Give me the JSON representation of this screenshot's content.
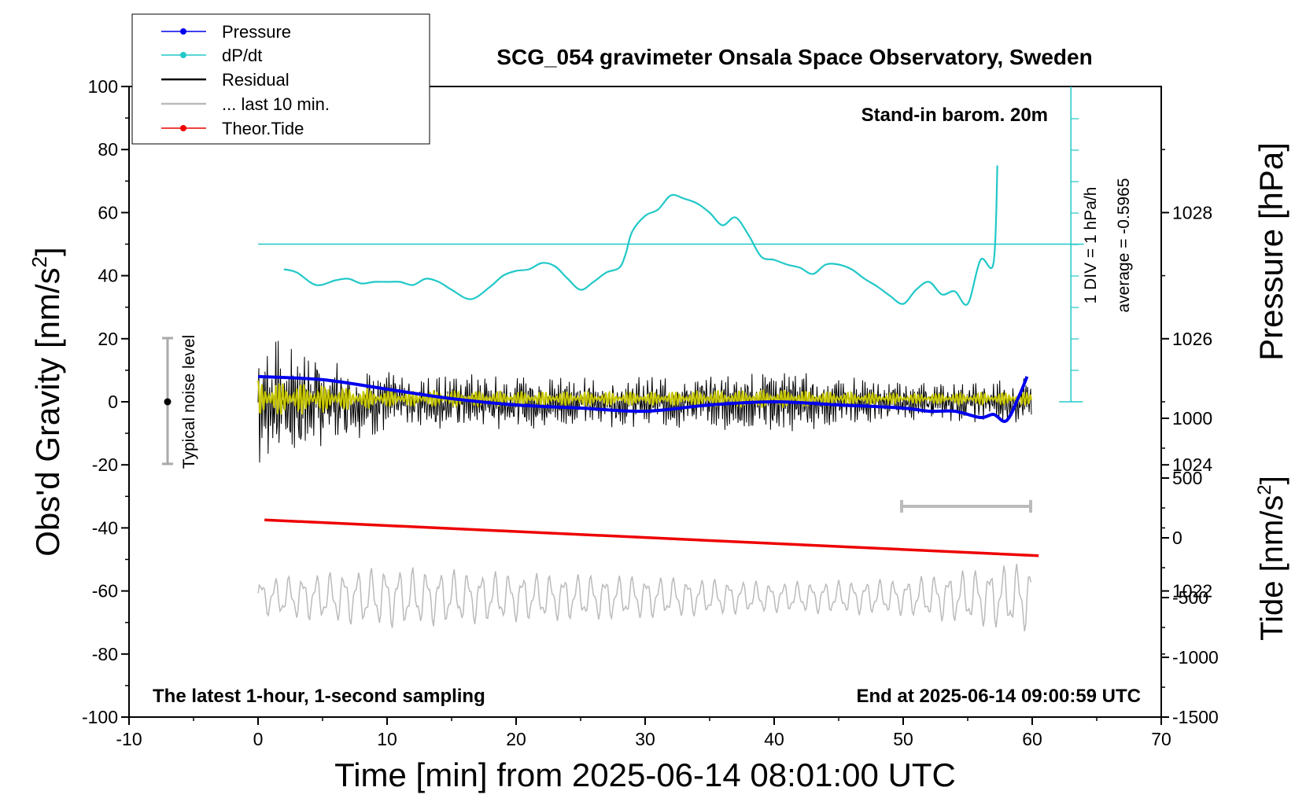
{
  "chart_data": {
    "type": "line",
    "title": "SCG_054 gravimeter Onsala Space Observatory, Sweden",
    "xlabel": "Time [min] from 2025-06-14 08:01:00 UTC",
    "ylabel": "Obs'd Gravity [nm/s",
    "ylabel_sup": "2",
    "ylabel_end": "]",
    "y2label": "Pressure [hPa]",
    "y3label": "Tide [nm/s",
    "y3label_sup": "2",
    "y3label_end": "]",
    "xlim": [
      -10,
      70
    ],
    "ylim": [
      -100,
      100
    ],
    "pressure_lim": [
      1020,
      1030
    ],
    "tide_lim": [
      -1500,
      1500
    ],
    "x_ticks": [
      "-10",
      "0",
      "10",
      "20",
      "30",
      "40",
      "50",
      "60",
      "70"
    ],
    "y_ticks": [
      "-100",
      "-80",
      "-60",
      "-40",
      "-20",
      "0",
      "20",
      "40",
      "60",
      "80",
      "100"
    ],
    "pressure_ticks": [
      "1022",
      "1024",
      "1026",
      "1028"
    ],
    "tide_ticks": [
      "1000",
      "500",
      "0",
      "-500",
      "-1000",
      "-1500"
    ],
    "annotations": {
      "barometer": "Stand-in barom. 20m",
      "noise": "Typical noise level",
      "dpdt_scale": "1 DIV = 1 hPa/h",
      "dpdt_average": "average = -0.5965",
      "latest": "The latest 1-hour, 1-second sampling",
      "end": "End at 2025-06-14 09:00:59 UTC"
    },
    "legend": {
      "placement": "top-left",
      "entries": [
        "Pressure",
        "dP/dt",
        "Residual",
        "... last 10 min.",
        "Theor.Tide"
      ]
    },
    "colors": {
      "pressure": "#0000ee",
      "dpdt": "#22c8c8",
      "residual": "#000000",
      "residual_smooth": "#c8c800",
      "last10": "#bbbbbb",
      "tide": "#ee0000"
    },
    "series": [
      {
        "name": "Pressure",
        "axis": "pressure",
        "x": [
          0,
          5,
          10,
          15,
          20,
          25,
          30,
          35,
          40,
          45,
          50,
          52,
          54,
          56,
          57,
          58,
          59,
          59.6
        ],
        "values": [
          1025.4,
          1025.35,
          1025.2,
          1025.05,
          1024.95,
          1024.9,
          1024.85,
          1024.95,
          1025.0,
          1024.95,
          1024.9,
          1024.85,
          1024.85,
          1024.75,
          1024.8,
          1024.7,
          1025.1,
          1025.4
        ]
      },
      {
        "name": "dP/dt",
        "axis": "dpdt_div",
        "x": [
          2,
          3,
          4.5,
          6,
          7,
          8,
          9,
          10,
          11,
          12,
          13,
          14,
          15,
          16.5,
          18,
          19,
          20,
          21,
          22,
          23,
          24,
          25,
          26,
          27,
          28,
          28.5,
          29,
          30,
          31,
          32,
          33,
          34,
          35,
          36,
          37,
          38,
          39,
          40,
          41,
          42,
          43,
          44,
          45,
          46,
          47,
          48,
          49,
          50,
          51,
          52,
          53,
          54,
          55,
          56,
          57,
          57.3
        ],
        "values": [
          -0.8,
          -0.9,
          -1.3,
          -1.15,
          -1.1,
          -1.25,
          -1.2,
          -1.2,
          -1.2,
          -1.3,
          -1.1,
          -1.2,
          -1.45,
          -1.75,
          -1.35,
          -1.0,
          -0.85,
          -0.8,
          -0.6,
          -0.7,
          -1.1,
          -1.45,
          -1.2,
          -0.9,
          -0.75,
          -0.3,
          0.4,
          0.9,
          1.1,
          1.55,
          1.45,
          1.3,
          1.0,
          0.6,
          0.85,
          0.3,
          -0.4,
          -0.5,
          -0.65,
          -0.75,
          -0.95,
          -0.65,
          -0.65,
          -0.8,
          -1.1,
          -1.35,
          -1.65,
          -1.9,
          -1.45,
          -1.2,
          -1.6,
          -1.5,
          -1.9,
          -0.5,
          -0.6,
          2.5
        ]
      },
      {
        "name": "Residual",
        "axis": "gravity",
        "x": [
          0,
          10,
          20,
          30,
          40,
          50,
          60
        ],
        "values": [
          0,
          0,
          0,
          0,
          0,
          0,
          0
        ],
        "amplitude": [
          22,
          10,
          9,
          8,
          11,
          6,
          8
        ]
      },
      {
        "name": "... last 10 min.",
        "axis": "gravity",
        "x": [
          0,
          10,
          20,
          30,
          40,
          50,
          60
        ],
        "values": [
          -62,
          -62,
          -62,
          -62,
          -62,
          -62,
          -62
        ],
        "amplitude": [
          6,
          10,
          8,
          7,
          5,
          6,
          12
        ]
      },
      {
        "name": "Theor.Tide",
        "axis": "tide",
        "x": [
          0.5,
          60.5
        ],
        "values": [
          150,
          -150
        ]
      }
    ]
  }
}
